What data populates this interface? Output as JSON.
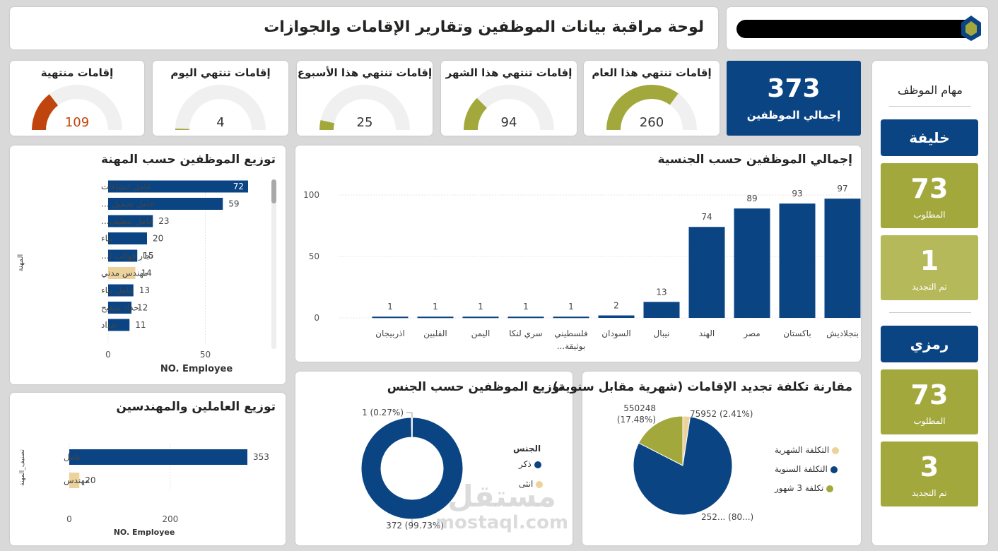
{
  "header": {
    "title": "لوحة مراقبة بيانات الموظفين وتقارير الإقامات والجوازات"
  },
  "colors": {
    "navy": "#0b4483",
    "olive": "#a3a83d",
    "olive_light": "#b6b95a",
    "orange": "#c0440d",
    "beige": "#ecd29b",
    "gauge_bg": "#f0f0f0"
  },
  "total": {
    "value": "373",
    "label": "إجمالي الموظفين"
  },
  "gauges": [
    {
      "label": "إقامات تنتهي هذا العام",
      "value": 260,
      "display": "260",
      "fraction": 0.7,
      "color": "#a3a83d"
    },
    {
      "label": "إقامات تنتهي هذا الشهر",
      "value": 94,
      "display": "94",
      "fraction": 0.25,
      "color": "#a3a83d"
    },
    {
      "label": "إقامات تنتهي هذا الأسبوع",
      "value": 25,
      "display": "25",
      "fraction": 0.07,
      "color": "#a3a83d"
    },
    {
      "label": "إقامات تنتهي اليوم",
      "value": 4,
      "display": "4",
      "fraction": 0.01,
      "color": "#a3a83d"
    },
    {
      "label": "إقامات منتهية",
      "value": 109,
      "display": "109",
      "fraction": 0.29,
      "color": "#c0440d"
    }
  ],
  "tasks": {
    "title": "مهام الموظف",
    "people": [
      {
        "name": "خليفة",
        "required": "73",
        "required_label": "المطلوب",
        "renewed": "1",
        "renewed_label": "تم التجديد"
      },
      {
        "name": "رمزي",
        "required": "73",
        "required_label": "المطلوب",
        "renewed": "3",
        "renewed_label": "تم التجديد"
      }
    ]
  },
  "chart_data": [
    {
      "id": "profession",
      "type": "bar",
      "orientation": "horizontal",
      "title": "توزيع الموظفين حسب المهنة",
      "xlabel": "NO. Employee",
      "ylabel": "المهنة",
      "xlim": [
        0,
        72
      ],
      "xticks": [
        "0",
        "50"
      ],
      "categories": [
        "عامل انشاءات",
        "عامل تحميل ...",
        "عامل تنظيف...",
        "بناء",
        "نجار قوالب ا...",
        "مهندس مدني",
        "عامل بناء",
        "حداد صفيح",
        "حداد"
      ],
      "values": [
        72,
        59,
        23,
        20,
        15,
        14,
        13,
        12,
        11
      ],
      "highlight_index": 5
    },
    {
      "id": "nationality",
      "type": "bar",
      "title": "إجمالي الموظفين حسب الجنسية",
      "ylim": [
        0,
        100
      ],
      "yticks": [
        "0",
        "50",
        "100"
      ],
      "categories": [
        "بنجلاديش",
        "باكستان",
        "مصر",
        "الهند",
        "نيبال",
        "السودان",
        "فلسطيني بوثيقة...",
        "سري لنكا",
        "اليمن",
        "الفلبين",
        "اذربيجان"
      ],
      "values": [
        97,
        93,
        89,
        74,
        13,
        2,
        1,
        1,
        1,
        1,
        1
      ]
    },
    {
      "id": "workers_engineers",
      "type": "bar",
      "orientation": "horizontal",
      "title": "توزيع العاملين والمهندسين",
      "xlabel": "NO. Employee",
      "ylabel": "تصنيف_المهنة",
      "xlim": [
        0,
        353
      ],
      "xticks": [
        "0",
        "200"
      ],
      "categories": [
        "عامل",
        "مهندس"
      ],
      "values": [
        353,
        20
      ]
    },
    {
      "id": "gender",
      "type": "pie",
      "donut": true,
      "title": "توزيع الموظفين حسب الجنس",
      "legend_title": "الجنس",
      "labels": [
        "ذكر",
        "انثى"
      ],
      "values": [
        372,
        1
      ],
      "data_labels": [
        "372 (99.73%)",
        "1 (0.27%)"
      ]
    },
    {
      "id": "renewal_cost",
      "type": "pie",
      "title": "مقارنة تكلفة تجديد الإقامات (شهرية مقابل سنوية)",
      "labels": [
        "التكلفة الشهرية",
        "التكلفة السنوية",
        "تكلفة 3 شهور"
      ],
      "values": [
        75952,
        2524680,
        550248
      ],
      "percentages": [
        2.41,
        80.11,
        17.48
      ],
      "data_labels": [
        "75952 (2.41%)",
        "252... (80...)",
        "550248 (17.48%)"
      ]
    }
  ],
  "watermark": {
    "arabic": "مستقل",
    "latin": "mostaql.com"
  }
}
